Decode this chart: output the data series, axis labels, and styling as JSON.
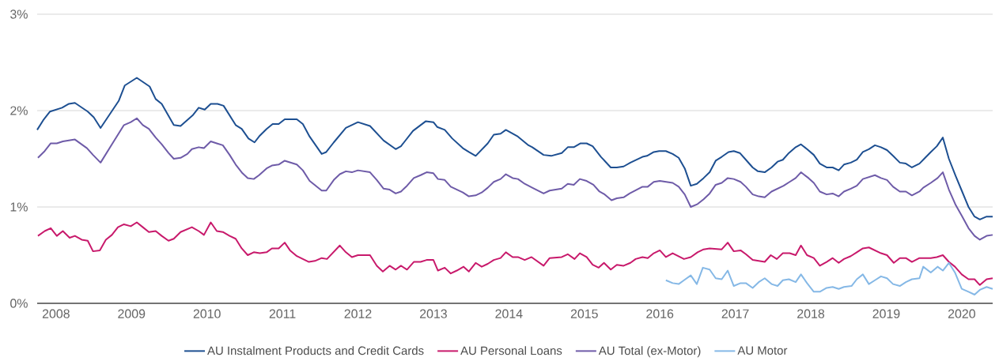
{
  "chart_data": {
    "type": "line",
    "xlim": [
      2007.75,
      2020.41
    ],
    "ylim": [
      0,
      3
    ],
    "xticks": [
      2008,
      2009,
      2010,
      2011,
      2012,
      2013,
      2014,
      2015,
      2016,
      2017,
      2018,
      2019,
      2020
    ],
    "yticks": [
      {
        "value": 0,
        "label": "0%"
      },
      {
        "value": 1,
        "label": "1%"
      },
      {
        "value": 2,
        "label": "2%"
      },
      {
        "value": 3,
        "label": "3%"
      }
    ],
    "grid": "y",
    "legend": "bottom",
    "marker": "none",
    "line_style": "solid",
    "series": [
      {
        "name": "AU Instalment Products and Credit Cards",
        "color": "#1d4f91",
        "x": [
          2007.75,
          2007.83,
          2007.92,
          2008.08,
          2008.17,
          2008.25,
          2008.42,
          2008.5,
          2008.59,
          2008.83,
          2008.91,
          2009.07,
          2009.24,
          2009.32,
          2009.4,
          2009.56,
          2009.65,
          2009.81,
          2009.89,
          2009.97,
          2010.05,
          2010.14,
          2010.22,
          2010.38,
          2010.46,
          2010.55,
          2010.63,
          2010.7,
          2010.79,
          2010.87,
          2010.95,
          2011.03,
          2011.19,
          2011.27,
          2011.36,
          2011.52,
          2011.58,
          2011.68,
          2011.84,
          2012.0,
          2012.16,
          2012.34,
          2012.5,
          2012.57,
          2012.73,
          2012.9,
          2013.0,
          2013.05,
          2013.15,
          2013.25,
          2013.39,
          2013.47,
          2013.56,
          2013.72,
          2013.8,
          2013.89,
          2013.96,
          2014.12,
          2014.26,
          2014.31,
          2014.46,
          2014.56,
          2014.7,
          2014.78,
          2014.86,
          2014.95,
          2015.03,
          2015.11,
          2015.22,
          2015.35,
          2015.43,
          2015.52,
          2015.61,
          2015.77,
          2015.83,
          2015.92,
          2015.99,
          2016.08,
          2016.17,
          2016.25,
          2016.33,
          2016.41,
          2016.49,
          2016.58,
          2016.66,
          2016.74,
          2016.82,
          2016.91,
          2016.98,
          2017.06,
          2017.14,
          2017.23,
          2017.3,
          2017.39,
          2017.48,
          2017.56,
          2017.63,
          2017.71,
          2017.8,
          2017.87,
          2017.95,
          2018.04,
          2018.12,
          2018.21,
          2018.29,
          2018.37,
          2018.44,
          2018.53,
          2018.61,
          2018.69,
          2018.77,
          2018.85,
          2018.93,
          2019.01,
          2019.09,
          2019.18,
          2019.26,
          2019.34,
          2019.44,
          2019.49,
          2019.59,
          2019.67,
          2019.75,
          2019.83,
          2019.92,
          2020.0,
          2020.09,
          2020.17,
          2020.24,
          2020.33,
          2020.41
        ],
        "values": [
          1.8,
          1.9,
          1.99,
          2.03,
          2.07,
          2.08,
          1.99,
          1.93,
          1.82,
          2.1,
          2.26,
          2.34,
          2.25,
          2.12,
          2.07,
          1.85,
          1.84,
          1.95,
          2.03,
          2.01,
          2.07,
          2.07,
          2.05,
          1.85,
          1.81,
          1.71,
          1.67,
          1.74,
          1.81,
          1.86,
          1.86,
          1.91,
          1.91,
          1.86,
          1.73,
          1.55,
          1.57,
          1.67,
          1.82,
          1.88,
          1.84,
          1.69,
          1.6,
          1.63,
          1.79,
          1.89,
          1.88,
          1.83,
          1.8,
          1.71,
          1.61,
          1.57,
          1.53,
          1.66,
          1.75,
          1.76,
          1.8,
          1.73,
          1.64,
          1.62,
          1.54,
          1.53,
          1.56,
          1.62,
          1.62,
          1.66,
          1.66,
          1.63,
          1.52,
          1.41,
          1.41,
          1.42,
          1.46,
          1.52,
          1.53,
          1.57,
          1.58,
          1.58,
          1.55,
          1.51,
          1.4,
          1.22,
          1.24,
          1.3,
          1.36,
          1.48,
          1.52,
          1.57,
          1.58,
          1.56,
          1.49,
          1.41,
          1.37,
          1.36,
          1.41,
          1.47,
          1.49,
          1.56,
          1.62,
          1.65,
          1.6,
          1.54,
          1.45,
          1.41,
          1.41,
          1.38,
          1.44,
          1.46,
          1.49,
          1.57,
          1.6,
          1.64,
          1.62,
          1.59,
          1.53,
          1.46,
          1.45,
          1.41,
          1.45,
          1.49,
          1.57,
          1.63,
          1.72,
          1.5,
          1.32,
          1.17,
          1.0,
          0.9,
          0.87,
          0.9,
          0.9
        ]
      },
      {
        "name": "AU Personal Loans",
        "color": "#c8196b",
        "x": [
          2007.76,
          2007.85,
          2007.93,
          2008.01,
          2008.09,
          2008.18,
          2008.25,
          2008.34,
          2008.42,
          2008.49,
          2008.58,
          2008.66,
          2008.74,
          2008.82,
          2008.9,
          2008.99,
          2009.07,
          2009.15,
          2009.23,
          2009.32,
          2009.4,
          2009.49,
          2009.56,
          2009.65,
          2009.8,
          2009.89,
          2009.96,
          2010.05,
          2010.13,
          2010.21,
          2010.3,
          2010.38,
          2010.46,
          2010.54,
          2010.62,
          2010.7,
          2010.79,
          2010.86,
          2010.95,
          2011.03,
          2011.1,
          2011.19,
          2011.27,
          2011.35,
          2011.43,
          2011.52,
          2011.59,
          2011.76,
          2011.84,
          2011.92,
          2012.0,
          2012.16,
          2012.25,
          2012.33,
          2012.42,
          2012.5,
          2012.57,
          2012.65,
          2012.74,
          2012.83,
          2012.91,
          2013.0,
          2013.06,
          2013.15,
          2013.23,
          2013.31,
          2013.4,
          2013.47,
          2013.56,
          2013.64,
          2013.72,
          2013.8,
          2013.89,
          2013.96,
          2014.05,
          2014.12,
          2014.21,
          2014.3,
          2014.46,
          2014.54,
          2014.7,
          2014.78,
          2014.87,
          2014.94,
          2015.03,
          2015.11,
          2015.19,
          2015.26,
          2015.35,
          2015.43,
          2015.52,
          2015.61,
          2015.68,
          2015.77,
          2015.84,
          2015.92,
          2016.0,
          2016.08,
          2016.17,
          2016.32,
          2016.41,
          2016.5,
          2016.58,
          2016.66,
          2016.82,
          2016.9,
          2016.98,
          2017.07,
          2017.14,
          2017.23,
          2017.39,
          2017.47,
          2017.55,
          2017.63,
          2017.72,
          2017.8,
          2017.87,
          2017.95,
          2018.04,
          2018.12,
          2018.21,
          2018.29,
          2018.37,
          2018.44,
          2018.53,
          2018.61,
          2018.69,
          2018.77,
          2018.85,
          2018.93,
          2019.01,
          2019.1,
          2019.18,
          2019.26,
          2019.34,
          2019.44,
          2019.59,
          2019.67,
          2019.75,
          2019.83,
          2019.91,
          2020.0,
          2020.09,
          2020.17,
          2020.24,
          2020.33,
          2020.41
        ],
        "values": [
          0.7,
          0.75,
          0.78,
          0.7,
          0.75,
          0.68,
          0.7,
          0.66,
          0.65,
          0.54,
          0.55,
          0.66,
          0.71,
          0.79,
          0.82,
          0.8,
          0.84,
          0.79,
          0.74,
          0.75,
          0.7,
          0.65,
          0.67,
          0.74,
          0.79,
          0.75,
          0.71,
          0.84,
          0.75,
          0.74,
          0.7,
          0.67,
          0.57,
          0.5,
          0.53,
          0.52,
          0.53,
          0.57,
          0.57,
          0.63,
          0.55,
          0.49,
          0.46,
          0.43,
          0.44,
          0.47,
          0.46,
          0.6,
          0.53,
          0.48,
          0.5,
          0.5,
          0.39,
          0.33,
          0.39,
          0.35,
          0.39,
          0.35,
          0.43,
          0.43,
          0.45,
          0.45,
          0.34,
          0.37,
          0.31,
          0.34,
          0.38,
          0.33,
          0.42,
          0.38,
          0.41,
          0.45,
          0.47,
          0.53,
          0.48,
          0.48,
          0.45,
          0.48,
          0.39,
          0.47,
          0.48,
          0.51,
          0.46,
          0.52,
          0.48,
          0.4,
          0.37,
          0.42,
          0.35,
          0.4,
          0.39,
          0.42,
          0.46,
          0.48,
          0.47,
          0.52,
          0.55,
          0.48,
          0.52,
          0.46,
          0.48,
          0.53,
          0.56,
          0.57,
          0.56,
          0.63,
          0.54,
          0.55,
          0.51,
          0.45,
          0.43,
          0.5,
          0.46,
          0.52,
          0.52,
          0.5,
          0.6,
          0.5,
          0.47,
          0.39,
          0.43,
          0.47,
          0.42,
          0.46,
          0.49,
          0.53,
          0.57,
          0.58,
          0.55,
          0.52,
          0.5,
          0.42,
          0.47,
          0.47,
          0.43,
          0.47,
          0.47,
          0.48,
          0.5,
          0.43,
          0.38,
          0.3,
          0.25,
          0.25,
          0.19,
          0.25,
          0.26
        ]
      },
      {
        "name": "AU Total (ex-Motor)",
        "color": "#6e5ba8",
        "x": [
          2007.76,
          2007.85,
          2007.93,
          2008.01,
          2008.09,
          2008.25,
          2008.41,
          2008.49,
          2008.59,
          2008.74,
          2008.9,
          2008.99,
          2009.07,
          2009.15,
          2009.23,
          2009.32,
          2009.4,
          2009.49,
          2009.56,
          2009.65,
          2009.74,
          2009.8,
          2009.89,
          2009.96,
          2010.05,
          2010.13,
          2010.21,
          2010.3,
          2010.38,
          2010.47,
          2010.54,
          2010.62,
          2010.69,
          2010.79,
          2010.86,
          2010.95,
          2011.03,
          2011.19,
          2011.27,
          2011.36,
          2011.52,
          2011.58,
          2011.68,
          2011.76,
          2011.84,
          2011.92,
          2012.0,
          2012.16,
          2012.25,
          2012.34,
          2012.42,
          2012.5,
          2012.57,
          2012.65,
          2012.74,
          2012.83,
          2012.91,
          2013.0,
          2013.06,
          2013.15,
          2013.23,
          2013.39,
          2013.47,
          2013.56,
          2013.64,
          2013.72,
          2013.8,
          2013.89,
          2013.96,
          2014.05,
          2014.12,
          2014.21,
          2014.31,
          2014.46,
          2014.54,
          2014.7,
          2014.78,
          2014.86,
          2014.94,
          2015.03,
          2015.12,
          2015.2,
          2015.27,
          2015.36,
          2015.43,
          2015.52,
          2015.6,
          2015.77,
          2015.84,
          2015.92,
          2016.0,
          2016.17,
          2016.25,
          2016.33,
          2016.41,
          2016.5,
          2016.58,
          2016.66,
          2016.74,
          2016.82,
          2016.9,
          2016.98,
          2017.07,
          2017.14,
          2017.23,
          2017.31,
          2017.39,
          2017.48,
          2017.56,
          2017.64,
          2017.72,
          2017.8,
          2017.87,
          2017.97,
          2018.04,
          2018.12,
          2018.21,
          2018.29,
          2018.37,
          2018.44,
          2018.53,
          2018.61,
          2018.69,
          2018.77,
          2018.85,
          2018.93,
          2019.01,
          2019.09,
          2019.18,
          2019.26,
          2019.34,
          2019.44,
          2019.49,
          2019.59,
          2019.68,
          2019.75,
          2019.83,
          2019.92,
          2020.0,
          2020.09,
          2020.17,
          2020.24,
          2020.33,
          2020.41
        ],
        "values": [
          1.51,
          1.58,
          1.66,
          1.66,
          1.68,
          1.7,
          1.61,
          1.54,
          1.46,
          1.65,
          1.85,
          1.88,
          1.92,
          1.85,
          1.81,
          1.72,
          1.65,
          1.56,
          1.5,
          1.51,
          1.55,
          1.6,
          1.62,
          1.61,
          1.68,
          1.66,
          1.64,
          1.54,
          1.44,
          1.35,
          1.3,
          1.29,
          1.33,
          1.4,
          1.43,
          1.44,
          1.48,
          1.44,
          1.38,
          1.27,
          1.17,
          1.17,
          1.28,
          1.34,
          1.37,
          1.36,
          1.38,
          1.36,
          1.28,
          1.19,
          1.18,
          1.14,
          1.16,
          1.22,
          1.3,
          1.33,
          1.36,
          1.35,
          1.29,
          1.28,
          1.21,
          1.15,
          1.11,
          1.12,
          1.15,
          1.2,
          1.26,
          1.29,
          1.34,
          1.3,
          1.29,
          1.24,
          1.2,
          1.14,
          1.17,
          1.19,
          1.24,
          1.23,
          1.29,
          1.27,
          1.23,
          1.16,
          1.13,
          1.07,
          1.09,
          1.1,
          1.14,
          1.21,
          1.21,
          1.26,
          1.27,
          1.25,
          1.21,
          1.13,
          1.0,
          1.03,
          1.08,
          1.14,
          1.23,
          1.25,
          1.3,
          1.29,
          1.26,
          1.21,
          1.13,
          1.11,
          1.1,
          1.16,
          1.19,
          1.22,
          1.26,
          1.3,
          1.36,
          1.3,
          1.25,
          1.16,
          1.13,
          1.14,
          1.11,
          1.16,
          1.19,
          1.22,
          1.29,
          1.31,
          1.33,
          1.3,
          1.28,
          1.21,
          1.16,
          1.16,
          1.12,
          1.16,
          1.2,
          1.25,
          1.3,
          1.36,
          1.18,
          1.02,
          0.91,
          0.78,
          0.7,
          0.66,
          0.7,
          0.71
        ]
      },
      {
        "name": "AU Motor",
        "color": "#85b8e6",
        "x": [
          2016.08,
          2016.17,
          2016.25,
          2016.32,
          2016.41,
          2016.49,
          2016.57,
          2016.66,
          2016.74,
          2016.82,
          2016.9,
          2016.98,
          2017.07,
          2017.14,
          2017.23,
          2017.31,
          2017.39,
          2017.48,
          2017.56,
          2017.63,
          2017.71,
          2017.8,
          2017.87,
          2017.95,
          2018.04,
          2018.12,
          2018.21,
          2018.29,
          2018.37,
          2018.44,
          2018.54,
          2018.61,
          2018.69,
          2018.77,
          2018.85,
          2018.93,
          2019.01,
          2019.09,
          2019.18,
          2019.26,
          2019.34,
          2019.44,
          2019.49,
          2019.59,
          2019.68,
          2019.75,
          2019.83,
          2019.91,
          2020.0,
          2020.09,
          2020.17,
          2020.24,
          2020.33,
          2020.41
        ],
        "values": [
          0.24,
          0.21,
          0.2,
          0.24,
          0.29,
          0.2,
          0.37,
          0.35,
          0.26,
          0.25,
          0.34,
          0.18,
          0.21,
          0.21,
          0.16,
          0.22,
          0.26,
          0.2,
          0.18,
          0.24,
          0.25,
          0.22,
          0.3,
          0.21,
          0.12,
          0.12,
          0.16,
          0.17,
          0.15,
          0.17,
          0.18,
          0.25,
          0.3,
          0.2,
          0.24,
          0.28,
          0.26,
          0.2,
          0.18,
          0.22,
          0.25,
          0.26,
          0.38,
          0.32,
          0.38,
          0.34,
          0.42,
          0.32,
          0.15,
          0.12,
          0.09,
          0.14,
          0.17,
          0.15
        ]
      }
    ]
  }
}
